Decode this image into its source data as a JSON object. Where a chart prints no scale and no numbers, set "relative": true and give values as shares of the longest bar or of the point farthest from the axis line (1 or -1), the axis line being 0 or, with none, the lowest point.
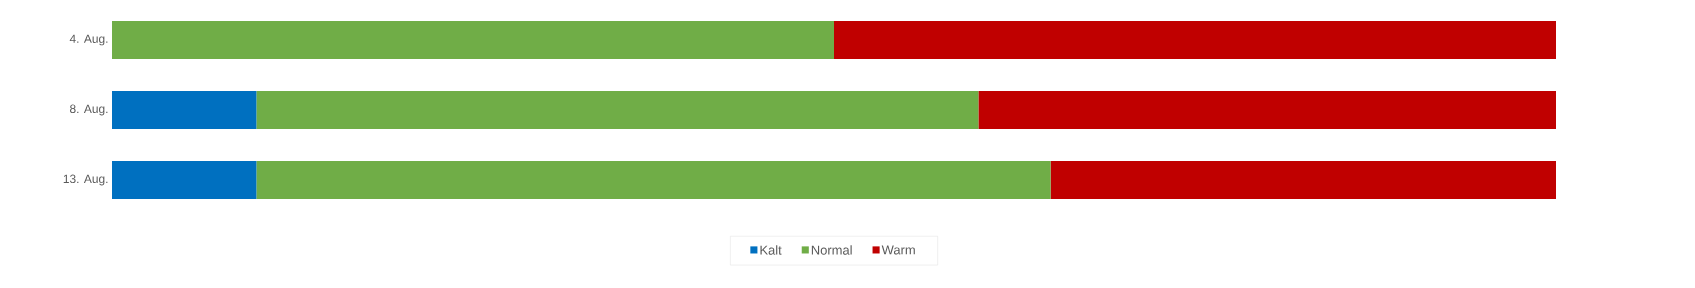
{
  "chart_data": {
    "type": "bar",
    "orientation": "horizontal",
    "stacked": true,
    "relative": true,
    "legend": "bottom",
    "categories": [
      "4. Aug.",
      "8. Aug.",
      "13. Aug."
    ],
    "series": [
      {
        "name": "Kalt",
        "color": "#0070c0",
        "values": [
          0,
          0.1,
          0.1
        ]
      },
      {
        "name": "Normal",
        "color": "#70ad47",
        "values": [
          0.5,
          0.5,
          0.55
        ]
      },
      {
        "name": "Warm",
        "color": "#c00000",
        "values": [
          0.5,
          0.4,
          0.35
        ]
      }
    ]
  }
}
